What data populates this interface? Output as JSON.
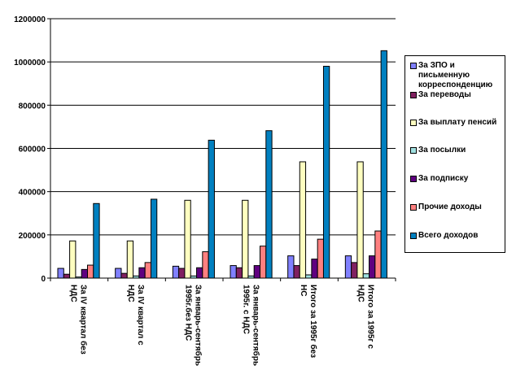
{
  "chart_data": {
    "type": "bar",
    "title": "",
    "xlabel": "",
    "ylabel": "",
    "ylim": [
      0,
      1200000
    ],
    "yticks": [
      "0",
      "200000",
      "400000",
      "600000",
      "800000",
      "1000000",
      "1200000"
    ],
    "grid": true,
    "legend_position": "right",
    "categories": [
      "За IV квартал без НДС",
      "За IV квартал с НДС",
      "За январь-сентябрь 1995г.без НДС",
      "За январь-сентябрь 1995г. с НДС",
      "Итого за 1995г без НС",
      "Итого за 1995г с НДС"
    ],
    "series": [
      {
        "name": "За ЗПО и письменную корреспонденцию",
        "color": "#8080ff",
        "values": [
          45000,
          45000,
          55000,
          58000,
          103000,
          103000
        ]
      },
      {
        "name": "За переводы",
        "color": "#802060",
        "values": [
          18000,
          22000,
          45000,
          48000,
          58000,
          72000
        ]
      },
      {
        "name": "За выплату пенсий",
        "color": "#ffffc0",
        "values": [
          172000,
          172000,
          360000,
          360000,
          538000,
          538000
        ]
      },
      {
        "name": "За посылки",
        "color": "#a0e0e0",
        "values": [
          5000,
          10000,
          10000,
          10000,
          15000,
          20000
        ]
      },
      {
        "name": "За подписку",
        "color": "#600080",
        "values": [
          40000,
          48000,
          48000,
          58000,
          88000,
          103000
        ]
      },
      {
        "name": "Прочие доходы",
        "color": "#ff8080",
        "values": [
          60000,
          72000,
          122000,
          148000,
          180000,
          218000
        ]
      },
      {
        "name": "Всего доходов",
        "color": "#0080c0",
        "values": [
          345000,
          365000,
          638000,
          682000,
          980000,
          1052000
        ]
      }
    ]
  }
}
